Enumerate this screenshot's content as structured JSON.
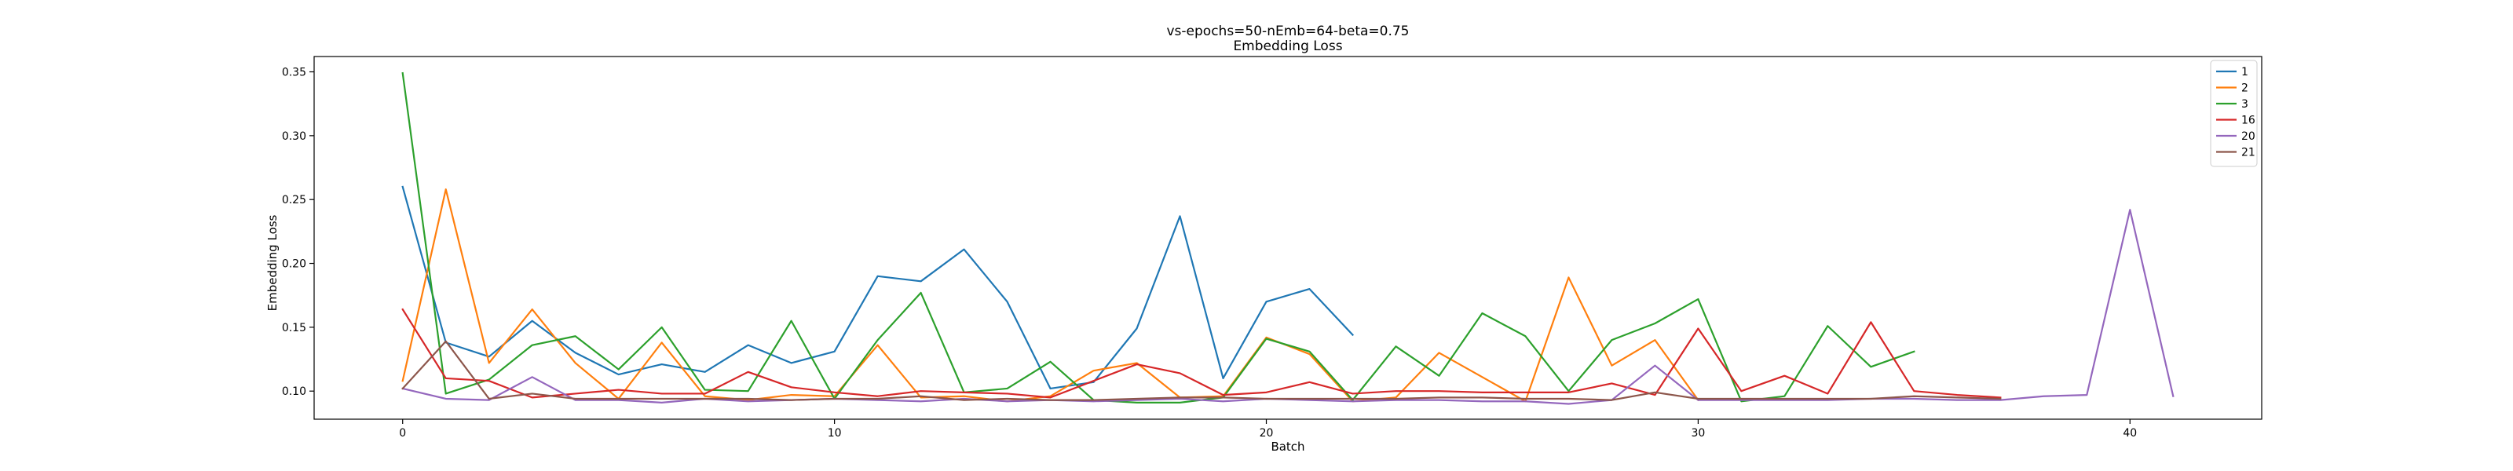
{
  "chart_data": {
    "type": "line",
    "title": "vs-epochs=50-nEmb=64-beta=0.75",
    "subtitle": "Embedding Loss",
    "xlabel": "Batch",
    "ylabel": "Embedding Loss",
    "xlim": [
      -2.05,
      43.05
    ],
    "ylim": [
      0.078,
      0.362
    ],
    "xticks": [
      0,
      10,
      20,
      30,
      40
    ],
    "yticks": [
      0.1,
      0.15,
      0.2,
      0.25,
      0.3,
      0.35
    ],
    "ytick_labels": [
      "0.10",
      "0.15",
      "0.20",
      "0.25",
      "0.30",
      "0.35"
    ],
    "grid": false,
    "legend_position": "top-right",
    "series": [
      {
        "name": "1",
        "color": "#1f77b4",
        "x": [
          0,
          1,
          2,
          3,
          4,
          5,
          6,
          7,
          8,
          9,
          10,
          11,
          12,
          13,
          14,
          15,
          16,
          17,
          18,
          19,
          20,
          21,
          22
        ],
        "values": [
          0.26,
          0.138,
          0.127,
          0.155,
          0.13,
          0.113,
          0.121,
          0.115,
          0.136,
          0.122,
          0.131,
          0.19,
          0.186,
          0.211,
          0.17,
          0.102,
          0.107,
          0.149,
          0.237,
          0.11,
          0.17,
          0.18,
          0.144
        ]
      },
      {
        "name": "2",
        "color": "#ff7f0e",
        "x": [
          0,
          1,
          2,
          3,
          4,
          5,
          6,
          7,
          8,
          9,
          10,
          11,
          12,
          13,
          14,
          15,
          16,
          17,
          18,
          19,
          20,
          21,
          22,
          23,
          24,
          25,
          26,
          27,
          28,
          29,
          30
        ],
        "values": [
          0.108,
          0.258,
          0.122,
          0.164,
          0.122,
          0.094,
          0.138,
          0.096,
          0.093,
          0.097,
          0.096,
          0.136,
          0.095,
          0.096,
          0.092,
          0.096,
          0.116,
          0.122,
          0.095,
          0.096,
          0.142,
          0.129,
          0.092,
          0.095,
          0.13,
          0.111,
          0.092,
          0.189,
          0.12,
          0.14,
          0.093
        ]
      },
      {
        "name": "3",
        "color": "#2ca02c",
        "x": [
          0,
          1,
          2,
          3,
          4,
          5,
          6,
          7,
          8,
          9,
          10,
          11,
          12,
          13,
          14,
          15,
          16,
          17,
          18,
          19,
          20,
          21,
          22,
          23,
          24,
          25,
          26,
          27,
          28,
          29,
          30,
          31,
          32,
          33,
          34,
          35
        ],
        "values": [
          0.349,
          0.098,
          0.109,
          0.136,
          0.143,
          0.117,
          0.15,
          0.101,
          0.1,
          0.155,
          0.094,
          0.14,
          0.177,
          0.099,
          0.102,
          0.123,
          0.093,
          0.091,
          0.091,
          0.095,
          0.141,
          0.131,
          0.093,
          0.135,
          0.112,
          0.161,
          0.143,
          0.1,
          0.14,
          0.153,
          0.172,
          0.092,
          0.096,
          0.151,
          0.119,
          0.131
        ]
      },
      {
        "name": "16",
        "color": "#d62728",
        "x": [
          0,
          1,
          2,
          3,
          4,
          5,
          6,
          7,
          8,
          9,
          10,
          11,
          12,
          13,
          14,
          15,
          16,
          17,
          18,
          19,
          20,
          21,
          22,
          23,
          24,
          25,
          26,
          27,
          28,
          29,
          30,
          31,
          32,
          33,
          34,
          35,
          36,
          37
        ],
        "values": [
          0.164,
          0.11,
          0.108,
          0.095,
          0.098,
          0.101,
          0.098,
          0.098,
          0.115,
          0.103,
          0.099,
          0.096,
          0.1,
          0.099,
          0.098,
          0.095,
          0.108,
          0.121,
          0.114,
          0.097,
          0.099,
          0.107,
          0.098,
          0.1,
          0.1,
          0.099,
          0.099,
          0.099,
          0.106,
          0.097,
          0.149,
          0.1,
          0.112,
          0.098,
          0.154,
          0.1,
          0.097,
          0.095
        ]
      },
      {
        "name": "20",
        "color": "#9467bd",
        "x": [
          0,
          1,
          2,
          3,
          4,
          5,
          6,
          7,
          8,
          9,
          10,
          11,
          12,
          13,
          14,
          15,
          16,
          17,
          18,
          19,
          20,
          21,
          22,
          23,
          24,
          25,
          26,
          27,
          28,
          29,
          30,
          31,
          32,
          33,
          34,
          35,
          36,
          37,
          38,
          39,
          40,
          41
        ],
        "values": [
          0.102,
          0.094,
          0.093,
          0.111,
          0.093,
          0.093,
          0.091,
          0.094,
          0.092,
          0.093,
          0.094,
          0.093,
          0.092,
          0.094,
          0.092,
          0.093,
          0.092,
          0.093,
          0.094,
          0.092,
          0.094,
          0.093,
          0.092,
          0.093,
          0.093,
          0.092,
          0.092,
          0.09,
          0.093,
          0.12,
          0.093,
          0.093,
          0.093,
          0.093,
          0.094,
          0.094,
          0.093,
          0.093,
          0.096,
          0.097,
          0.242,
          0.096
        ]
      },
      {
        "name": "21",
        "color": "#8c564b",
        "x": [
          0,
          1,
          2,
          3,
          4,
          5,
          6,
          7,
          8,
          9,
          10,
          11,
          12,
          13,
          14,
          15,
          16,
          17,
          18,
          19,
          20,
          21,
          22,
          23,
          24,
          25,
          26,
          27,
          28,
          29,
          30,
          31,
          32,
          33,
          34,
          35,
          36,
          37
        ],
        "values": [
          0.102,
          0.139,
          0.094,
          0.098,
          0.094,
          0.094,
          0.094,
          0.094,
          0.094,
          0.093,
          0.094,
          0.094,
          0.096,
          0.093,
          0.094,
          0.093,
          0.093,
          0.094,
          0.095,
          0.095,
          0.094,
          0.094,
          0.094,
          0.094,
          0.095,
          0.095,
          0.094,
          0.094,
          0.093,
          0.099,
          0.094,
          0.094,
          0.094,
          0.094,
          0.094,
          0.096,
          0.095,
          0.094
        ]
      }
    ]
  }
}
